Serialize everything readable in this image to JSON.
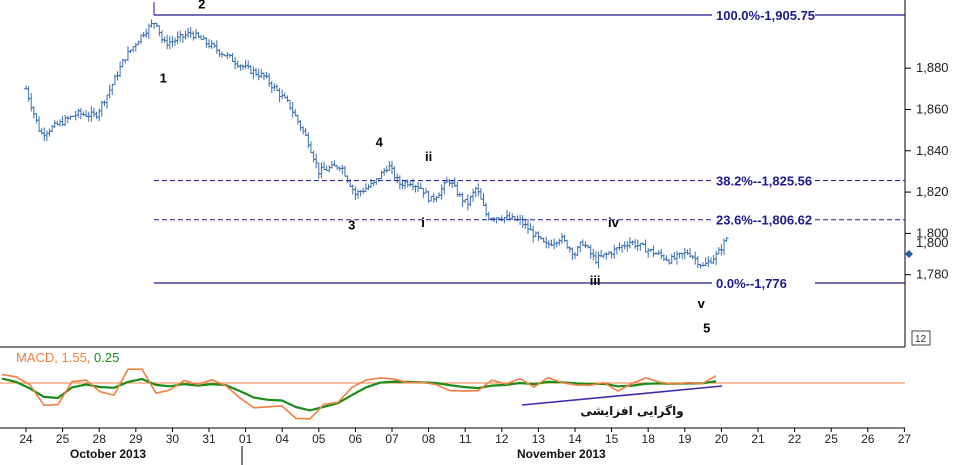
{
  "chart_data": {
    "type": "ohlc",
    "x_dates": [
      "24",
      "25",
      "28",
      "29",
      "30",
      "31",
      "01",
      "04",
      "05",
      "06",
      "07",
      "08",
      "11",
      "12",
      "13",
      "14",
      "15",
      "18",
      "19",
      "20",
      "21",
      "22",
      "25",
      "26",
      "27"
    ],
    "months": [
      "October 2013",
      "November 2013"
    ],
    "ylim": [
      1745,
      1913
    ],
    "y_ticks": [
      "1,780",
      "1,800",
      "1,820",
      "1,840",
      "1,860",
      "1,880"
    ],
    "last_price_label": "1,800",
    "price_anchors": [
      [
        0,
        1870
      ],
      [
        0.4,
        1848
      ],
      [
        0.8,
        1852
      ],
      [
        1.4,
        1858
      ],
      [
        1.9,
        1857
      ],
      [
        2.3,
        1870
      ],
      [
        2.7,
        1885
      ],
      [
        3.2,
        1897
      ],
      [
        3.55,
        1903
      ],
      [
        3.75,
        1892
      ],
      [
        4.0,
        1893
      ],
      [
        4.5,
        1897
      ],
      [
        5.3,
        1888
      ],
      [
        6.0,
        1880
      ],
      [
        6.5,
        1876
      ],
      [
        7.2,
        1862
      ],
      [
        7.7,
        1845
      ],
      [
        8.0,
        1830
      ],
      [
        8.6,
        1833
      ],
      [
        9.0,
        1819
      ],
      [
        9.5,
        1824
      ],
      [
        9.9,
        1833
      ],
      [
        10.2,
        1824
      ],
      [
        10.5,
        1825
      ],
      [
        10.8,
        1822
      ],
      [
        11.05,
        1816
      ],
      [
        11.3,
        1820
      ],
      [
        11.55,
        1826
      ],
      [
        11.85,
        1818
      ],
      [
        12.05,
        1814
      ],
      [
        12.3,
        1822
      ],
      [
        12.6,
        1808
      ],
      [
        13.0,
        1808
      ],
      [
        13.5,
        1806
      ],
      [
        14.2,
        1794
      ],
      [
        14.6,
        1798
      ],
      [
        15.0,
        1790
      ],
      [
        15.2,
        1796
      ],
      [
        15.55,
        1787
      ],
      [
        16.0,
        1791
      ],
      [
        16.5,
        1796
      ],
      [
        17.0,
        1792
      ],
      [
        17.6,
        1787
      ],
      [
        18.1,
        1791
      ],
      [
        18.5,
        1784
      ],
      [
        18.9,
        1790
      ],
      [
        19.15,
        1798
      ]
    ],
    "fib_levels": [
      {
        "label": "100.0%-1,905.75",
        "value": 1905.75
      },
      {
        "label": "38.2%--1,825.56",
        "value": 1825.56
      },
      {
        "label": "23.6%--1,806.62",
        "value": 1806.62
      },
      {
        "label": "0.0%--1,776",
        "value": 1776
      }
    ],
    "wave_labels": [
      {
        "text": "1",
        "x": 3.75,
        "y": 1873
      },
      {
        "text": "2",
        "x": 4.8,
        "y": 1909
      },
      {
        "text": "3",
        "x": 8.9,
        "y": 1802
      },
      {
        "text": "4",
        "x": 9.65,
        "y": 1842
      },
      {
        "text": "ii",
        "x": 11.0,
        "y": 1835
      },
      {
        "text": "i",
        "x": 10.85,
        "y": 1803
      },
      {
        "text": "iii",
        "x": 15.55,
        "y": 1775
      },
      {
        "text": "iv",
        "x": 16.05,
        "y": 1803
      },
      {
        "text": "v",
        "x": 18.45,
        "y": 1764
      },
      {
        "text": "5",
        "x": 18.6,
        "y": 1752
      }
    ],
    "macd": {
      "label_name": "MACD, 1.55, ",
      "label_value": "0.25",
      "macd_color": "#f08040",
      "signal_color": "#1a8c1a",
      "macd_values": [
        3.8,
        3.2,
        1.0,
        -4.6,
        -4.4,
        1.9,
        2.3,
        -0.9,
        -1.8,
        5.3,
        5.3,
        -1.3,
        -0.4,
        2.2,
        1.1,
        2.4,
        0.7,
        -2.6,
        -5.3,
        -5.0,
        -4.8,
        -8.2,
        -8.3,
        -4.3,
        -3.8,
        0.3,
        2.3,
        2.9,
        2.6,
        1.6,
        1.7,
        1.1,
        -0.6,
        -0.7,
        -0.6,
        2.3,
        1.2,
        2.7,
        0.4,
        3.0,
        1.6,
        1.0,
        0.9,
        1.6,
        -0.7,
        1.4,
        2.9,
        1.7,
        1.2,
        1.6,
        1.3,
        3.5
      ],
      "signal_values": [
        2.7,
        1.8,
        0.0,
        -2.3,
        -2.6,
        0.3,
        1.1,
        0.4,
        0.2,
        1.8,
        2.6,
        1.0,
        0.6,
        1.2,
        0.8,
        1.2,
        0.9,
        -0.7,
        -2.5,
        -3.1,
        -3.3,
        -5.1,
        -6.0,
        -5.0,
        -4.0,
        -1.8,
        0.3,
        1.6,
        1.9,
        1.8,
        1.7,
        1.5,
        0.9,
        0.4,
        0.1,
        0.8,
        1.0,
        1.5,
        1.2,
        1.8,
        1.7,
        1.4,
        1.2,
        1.3,
        0.6,
        0.8,
        1.3,
        1.4,
        1.3,
        1.4,
        1.4,
        2.0
      ],
      "divergence_note": "واگرایی افزایشی"
    }
  }
}
